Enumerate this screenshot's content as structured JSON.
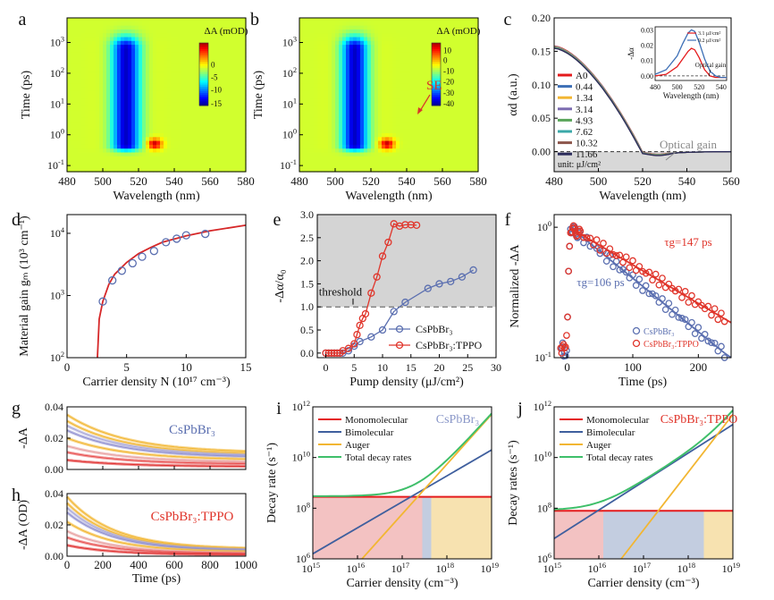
{
  "chart_data": [
    {
      "id": "a",
      "type": "heatmap",
      "panel_label": "a",
      "xlabel": "Wavelength (nm)",
      "ylabel": "Time (ps)",
      "x_ticks": [
        "480",
        "500",
        "520",
        "540",
        "560",
        "580"
      ],
      "xlim": [
        480,
        580
      ],
      "y_scale": "log",
      "y_ticks": [
        "10^-1",
        "10^0",
        "10^1",
        "10^2",
        "10^3"
      ],
      "colorbar_title": "ΔA (mOD)",
      "colorbar_ticks": [
        "0",
        "-5",
        "-10",
        "-15"
      ]
    },
    {
      "id": "b",
      "type": "heatmap",
      "panel_label": "b",
      "xlabel": "Wavelength (nm)",
      "ylabel": "Time (ps)",
      "x_ticks": [
        "480",
        "500",
        "520",
        "540",
        "560",
        "580"
      ],
      "xlim": [
        480,
        580
      ],
      "y_scale": "log",
      "y_ticks": [
        "10^-1",
        "10^0",
        "10^1",
        "10^2",
        "10^3"
      ],
      "colorbar_title": "ΔA (mOD)",
      "colorbar_ticks": [
        "10",
        "0",
        "-10",
        "-20",
        "-30",
        "-40"
      ],
      "annotations": [
        "SE"
      ]
    },
    {
      "id": "c",
      "type": "line",
      "panel_label": "c",
      "xlabel": "Wavelength (nm)",
      "ylabel": "αd (a.u.)",
      "xlim": [
        480,
        560
      ],
      "ylim": [
        -0.03,
        0.2
      ],
      "x_ticks": [
        "480",
        "500",
        "520",
        "540",
        "560"
      ],
      "y_ticks": [
        "0.00",
        "0.05",
        "0.10",
        "0.15",
        "0.20"
      ],
      "legend": [
        "A0",
        "0.44",
        "1.34",
        "3.14",
        "4.93",
        "7.62",
        "10.32",
        "11.66"
      ],
      "legend_colors": [
        "#e41a1c",
        "#3d6fb6",
        "#f2b632",
        "#7b6bb0",
        "#5aa55a",
        "#3aa8a8",
        "#8c564b",
        "#2a2a5a"
      ],
      "unit_note": "unit: μJ/cm²",
      "annotations": [
        "Optical gain"
      ],
      "inset": {
        "ylabel": "-Δα",
        "xlabel": "Wavelength (nm)",
        "x_ticks": [
          "480",
          "500",
          "520",
          "540"
        ],
        "y_ticks": [
          "0.00",
          "0.01",
          "0.02",
          "0.03"
        ],
        "legend": [
          "3.1 μJ/cm²",
          "9.2 μJ/cm²"
        ],
        "annotation": "Optical gain",
        "series": [
          {
            "name": "3.1 μJ/cm²",
            "color": "#e41a1c",
            "x": [
              480,
              490,
              500,
              505,
              510,
              513,
              516,
              520,
              525,
              530,
              535,
              540,
              545
            ],
            "y": [
              0.0,
              0.001,
              0.006,
              0.011,
              0.016,
              0.018,
              0.017,
              0.012,
              0.004,
              0.0,
              -0.001,
              -0.001,
              -0.001
            ]
          },
          {
            "name": "9.2 μJ/cm²",
            "color": "#3d6fb6",
            "x": [
              480,
              490,
              500,
              505,
              510,
              513,
              516,
              520,
              525,
              530,
              535,
              540,
              545
            ],
            "y": [
              0.001,
              0.004,
              0.013,
              0.021,
              0.028,
              0.03,
              0.029,
              0.022,
              0.011,
              0.003,
              0.0,
              -0.001,
              -0.001
            ]
          }
        ]
      }
    },
    {
      "id": "d",
      "type": "scatter",
      "panel_label": "d",
      "xlabel": "Carrier density N (10¹⁷ cm⁻³)",
      "ylabel": "Material gain gₘ (10³ cm⁻¹)",
      "xlim": [
        0,
        15
      ],
      "ylim_log": [
        100,
        20000
      ],
      "x_ticks": [
        "0",
        "5",
        "10",
        "15"
      ],
      "y_ticks": [
        "10^2",
        "10^3",
        "10^4"
      ],
      "points": {
        "x": [
          3.0,
          3.8,
          4.6,
          5.5,
          6.3,
          7.3,
          8.3,
          9.2,
          10.0,
          11.6
        ],
        "y": [
          800,
          1750,
          2500,
          3300,
          4200,
          5200,
          7200,
          8200,
          9300,
          9800
        ]
      },
      "fit": {
        "x": [
          2.55,
          2.7,
          3.0,
          3.5,
          4,
          5,
          6,
          7,
          8,
          10,
          12,
          15
        ],
        "y": [
          100,
          420,
          800,
          1500,
          2200,
          3400,
          4700,
          5900,
          7200,
          9100,
          11000,
          13500
        ]
      }
    },
    {
      "id": "e",
      "type": "line",
      "panel_label": "e",
      "xlabel": "Pump density (μJ/cm²)",
      "ylabel": "-Δα/α₀",
      "xlim": [
        -1.5,
        30
      ],
      "ylim": [
        -0.1,
        3.0
      ],
      "x_ticks": [
        "0",
        "5",
        "10",
        "15",
        "20",
        "25",
        "30"
      ],
      "y_ticks": [
        "0.0",
        "0.5",
        "1.0",
        "1.5",
        "2.0",
        "2.5",
        "3.0"
      ],
      "threshold_label": "threshold",
      "threshold_value": 1.0,
      "series": [
        {
          "name": "CsPbBr₃",
          "color": "#5b6fb0",
          "x": [
            0,
            0.5,
            1,
            1.5,
            2,
            2.5,
            3,
            4,
            5,
            6,
            8,
            10,
            12,
            14,
            18,
            20,
            22,
            24,
            26
          ],
          "y": [
            0,
            0,
            0,
            0,
            0,
            0,
            0,
            0.05,
            0.15,
            0.25,
            0.35,
            0.5,
            0.9,
            1.1,
            1.4,
            1.5,
            1.55,
            1.65,
            1.8
          ]
        },
        {
          "name": "CsPbBr₃:TPPO",
          "color": "#e0352b",
          "x": [
            0,
            0.5,
            1,
            1.5,
            2,
            2.5,
            3,
            4,
            5,
            5.5,
            6,
            6.5,
            7,
            8,
            9,
            10,
            11,
            12,
            13,
            14,
            15,
            16
          ],
          "y": [
            0,
            0,
            0,
            0,
            0,
            0,
            0.05,
            0.1,
            0.2,
            0.4,
            0.6,
            0.75,
            0.85,
            1.3,
            1.65,
            2.1,
            2.4,
            2.8,
            2.75,
            2.78,
            2.78,
            2.77
          ]
        }
      ]
    },
    {
      "id": "f",
      "type": "scatter",
      "panel_label": "f",
      "xlabel": "Time (ps)",
      "ylabel": "Normalized -ΔA",
      "xlim": [
        -20,
        250
      ],
      "y_scale": "log",
      "ylim_log": [
        0.1,
        1.2
      ],
      "x_ticks": [
        "0",
        "100",
        "200"
      ],
      "y_ticks": [
        "10^-1",
        "10^0"
      ],
      "annotations": [
        "τg=147 ps",
        "τg=106 ps"
      ],
      "legend": [
        "CsPbBr₃",
        "CsPbBr₃:TPPO"
      ],
      "series": [
        {
          "name": "CsPbBr₃",
          "color": "#5b6fb0",
          "tau": 106
        },
        {
          "name": "CsPbBr₃:TPPO",
          "color": "#e0352b",
          "tau": 147
        }
      ]
    },
    {
      "id": "g",
      "type": "line",
      "panel_label": "g",
      "ylabel": "-ΔA",
      "title_inside": "CsPbBr₃",
      "xlim": [
        0,
        1000
      ],
      "ylim": [
        0,
        0.04
      ],
      "y_ticks": [
        "0.00",
        "0.02",
        "0.04"
      ]
    },
    {
      "id": "h",
      "type": "line",
      "panel_label": "h",
      "ylabel": "-ΔA (OD)",
      "xlabel": "Time (ps)",
      "title_inside": "CsPbBr₃:TPPO",
      "xlim": [
        0,
        1000
      ],
      "ylim": [
        0,
        0.04
      ],
      "x_ticks": [
        "0",
        "200",
        "400",
        "600",
        "800",
        "1000"
      ],
      "y_ticks": [
        "0.00",
        "0.02",
        "0.04"
      ]
    },
    {
      "id": "i",
      "type": "area",
      "panel_label": "i",
      "xlabel": "Carrier density (cm⁻³)",
      "ylabel": "Decay rate (s⁻¹)",
      "title_inside": "CsPbBr₃",
      "x_scale": "log",
      "y_scale": "log",
      "xlim_exp": [
        15,
        19
      ],
      "ylim_exp": [
        6,
        12
      ],
      "x_ticks": [
        "10^15",
        "10^16",
        "10^17",
        "10^18",
        "10^19"
      ],
      "y_ticks": [
        "10^6",
        "10^8",
        "10^10",
        "10^12"
      ],
      "legend": [
        "Monomolecular",
        "Bimolecular",
        "Auger",
        "Total decay rates"
      ],
      "legend_colors": [
        "#e41a1c",
        "#3f5f9e",
        "#f2b632",
        "#3fbf6a"
      ],
      "regions_exp": [
        15,
        17.45,
        17.65,
        19
      ],
      "mono_exp": 8.45,
      "bi_line": [
        [
          15,
          6.2
        ],
        [
          19,
          10.3
        ]
      ],
      "auger_line": [
        [
          16.1,
          6.0
        ],
        [
          19,
          11.7
        ]
      ]
    },
    {
      "id": "j",
      "type": "area",
      "panel_label": "j",
      "xlabel": "Carrier density (cm⁻³)",
      "ylabel": "Decay rates (s⁻¹)",
      "title_inside": "CsPbBr₃:TPPO",
      "x_scale": "log",
      "y_scale": "log",
      "xlim_exp": [
        15,
        19
      ],
      "ylim_exp": [
        6,
        12
      ],
      "x_ticks": [
        "10^15",
        "10^16",
        "10^17",
        "10^18",
        "10^19"
      ],
      "y_ticks": [
        "10^6",
        "10^8",
        "10^10",
        "10^12"
      ],
      "legend": [
        "Monomolecular",
        "Bimolecular",
        "Auger",
        "Total decay rates"
      ],
      "legend_colors": [
        "#e41a1c",
        "#3f5f9e",
        "#f2b632",
        "#3fbf6a"
      ],
      "regions_exp": [
        15,
        16.1,
        18.35,
        19
      ],
      "mono_exp": 7.9,
      "bi_line": [
        [
          15,
          6.8
        ],
        [
          19,
          11.3
        ]
      ],
      "auger_line": [
        [
          16.5,
          6.0
        ],
        [
          19,
          11.7
        ]
      ]
    }
  ]
}
